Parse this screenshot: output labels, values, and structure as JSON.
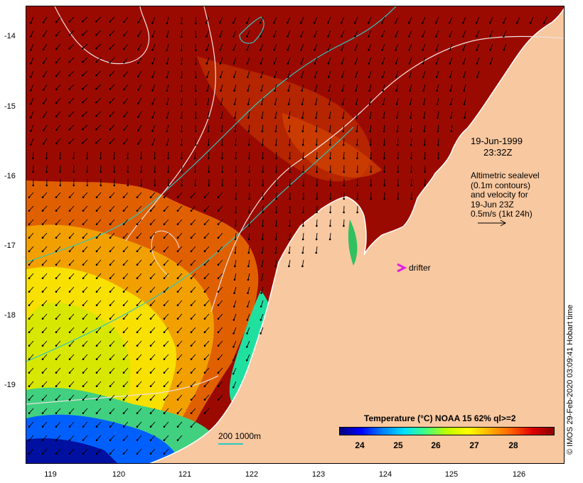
{
  "axes": {
    "y_ticks": [
      "-14",
      "-15",
      "-16",
      "-17",
      "-18",
      "-19"
    ],
    "x_ticks": [
      "119",
      "120",
      "121",
      "122",
      "123",
      "124",
      "125",
      "126"
    ]
  },
  "annotations": {
    "date": "19-Jun-1999",
    "time": "23:32Z",
    "altimetry_line1": "Altimetric sealevel",
    "altimetry_line2": "(0.1m contours)",
    "altimetry_line3": "and velocity for",
    "altimetry_line4": "19-Jun 23Z",
    "altimetry_line5": "0.5m/s (1kt 24h)",
    "drifter": "drifter"
  },
  "bathymetry_scale": "200  1000m",
  "colorbar": {
    "title": "Temperature (°C) NOAA 15 62% ql>=2",
    "ticks": [
      "24",
      "25",
      "26",
      "27",
      "28"
    ]
  },
  "credit": "© IMOS 29-Feb-2020 03:09:41 Hobart time",
  "colors": {
    "land": "#f8c8a0",
    "warm_sst": "#9b0a00",
    "contour": "#f0e0e0",
    "isobath": "#2fc8c0",
    "drifter": "#e020e0"
  }
}
